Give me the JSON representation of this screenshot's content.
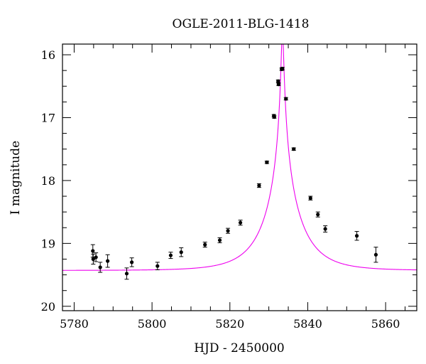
{
  "chart_data": {
    "type": "scatter",
    "title": "OGLE-2011-BLG-1418",
    "xlabel": "HJD - 2450000",
    "ylabel": "I magnitude",
    "xlim": [
      5777,
      5868
    ],
    "ylim": [
      20.07,
      15.83
    ],
    "y_inverted": true,
    "xticks": [
      5780,
      5800,
      5820,
      5840,
      5860
    ],
    "yticks": [
      16,
      17,
      18,
      19,
      20
    ],
    "x_minor_step": 5,
    "y_minor_step": 0.25,
    "grid": false,
    "colors": {
      "points": "#000000",
      "model": "#ee00ee",
      "axes": "#000000"
    },
    "series": [
      {
        "type": "scatter-errorbar",
        "points": [
          {
            "x": 5784.8,
            "y": 19.12,
            "err": 0.1
          },
          {
            "x": 5784.9,
            "y": 19.25,
            "err": 0.08
          },
          {
            "x": 5785.6,
            "y": 19.22,
            "err": 0.07
          },
          {
            "x": 5786.7,
            "y": 19.38,
            "err": 0.08
          },
          {
            "x": 5788.6,
            "y": 19.28,
            "err": 0.1
          },
          {
            "x": 5793.5,
            "y": 19.48,
            "err": 0.09
          },
          {
            "x": 5794.8,
            "y": 19.3,
            "err": 0.07
          },
          {
            "x": 5801.4,
            "y": 19.36,
            "err": 0.06
          },
          {
            "x": 5804.8,
            "y": 19.19,
            "err": 0.05
          },
          {
            "x": 5807.5,
            "y": 19.14,
            "err": 0.07
          },
          {
            "x": 5813.6,
            "y": 19.02,
            "err": 0.04
          },
          {
            "x": 5817.4,
            "y": 18.95,
            "err": 0.04
          },
          {
            "x": 5819.5,
            "y": 18.8,
            "err": 0.04
          },
          {
            "x": 5822.7,
            "y": 18.67,
            "err": 0.04
          },
          {
            "x": 5827.5,
            "y": 18.08,
            "err": 0.03
          },
          {
            "x": 5829.5,
            "y": 17.71,
            "err": 0.02
          },
          {
            "x": 5831.3,
            "y": 16.97,
            "err": 0.02
          },
          {
            "x": 5831.4,
            "y": 16.99,
            "err": 0.02
          },
          {
            "x": 5832.4,
            "y": 16.42,
            "err": 0.02
          },
          {
            "x": 5832.5,
            "y": 16.47,
            "err": 0.02
          },
          {
            "x": 5833.3,
            "y": 16.23,
            "err": 0.02
          },
          {
            "x": 5833.5,
            "y": 16.22,
            "err": 0.02
          },
          {
            "x": 5834.4,
            "y": 16.7,
            "err": 0.02
          },
          {
            "x": 5836.4,
            "y": 17.5,
            "err": 0.02
          },
          {
            "x": 5840.7,
            "y": 18.28,
            "err": 0.03
          },
          {
            "x": 5842.6,
            "y": 18.54,
            "err": 0.04
          },
          {
            "x": 5844.5,
            "y": 18.77,
            "err": 0.05
          },
          {
            "x": 5852.6,
            "y": 18.88,
            "err": 0.07
          },
          {
            "x": 5857.5,
            "y": 19.18,
            "err": 0.12
          }
        ]
      },
      {
        "type": "line",
        "model": "point-lens",
        "t0": 5833.5,
        "u0": 0.0295,
        "tE": 9.3,
        "baseline": 19.43
      }
    ]
  }
}
